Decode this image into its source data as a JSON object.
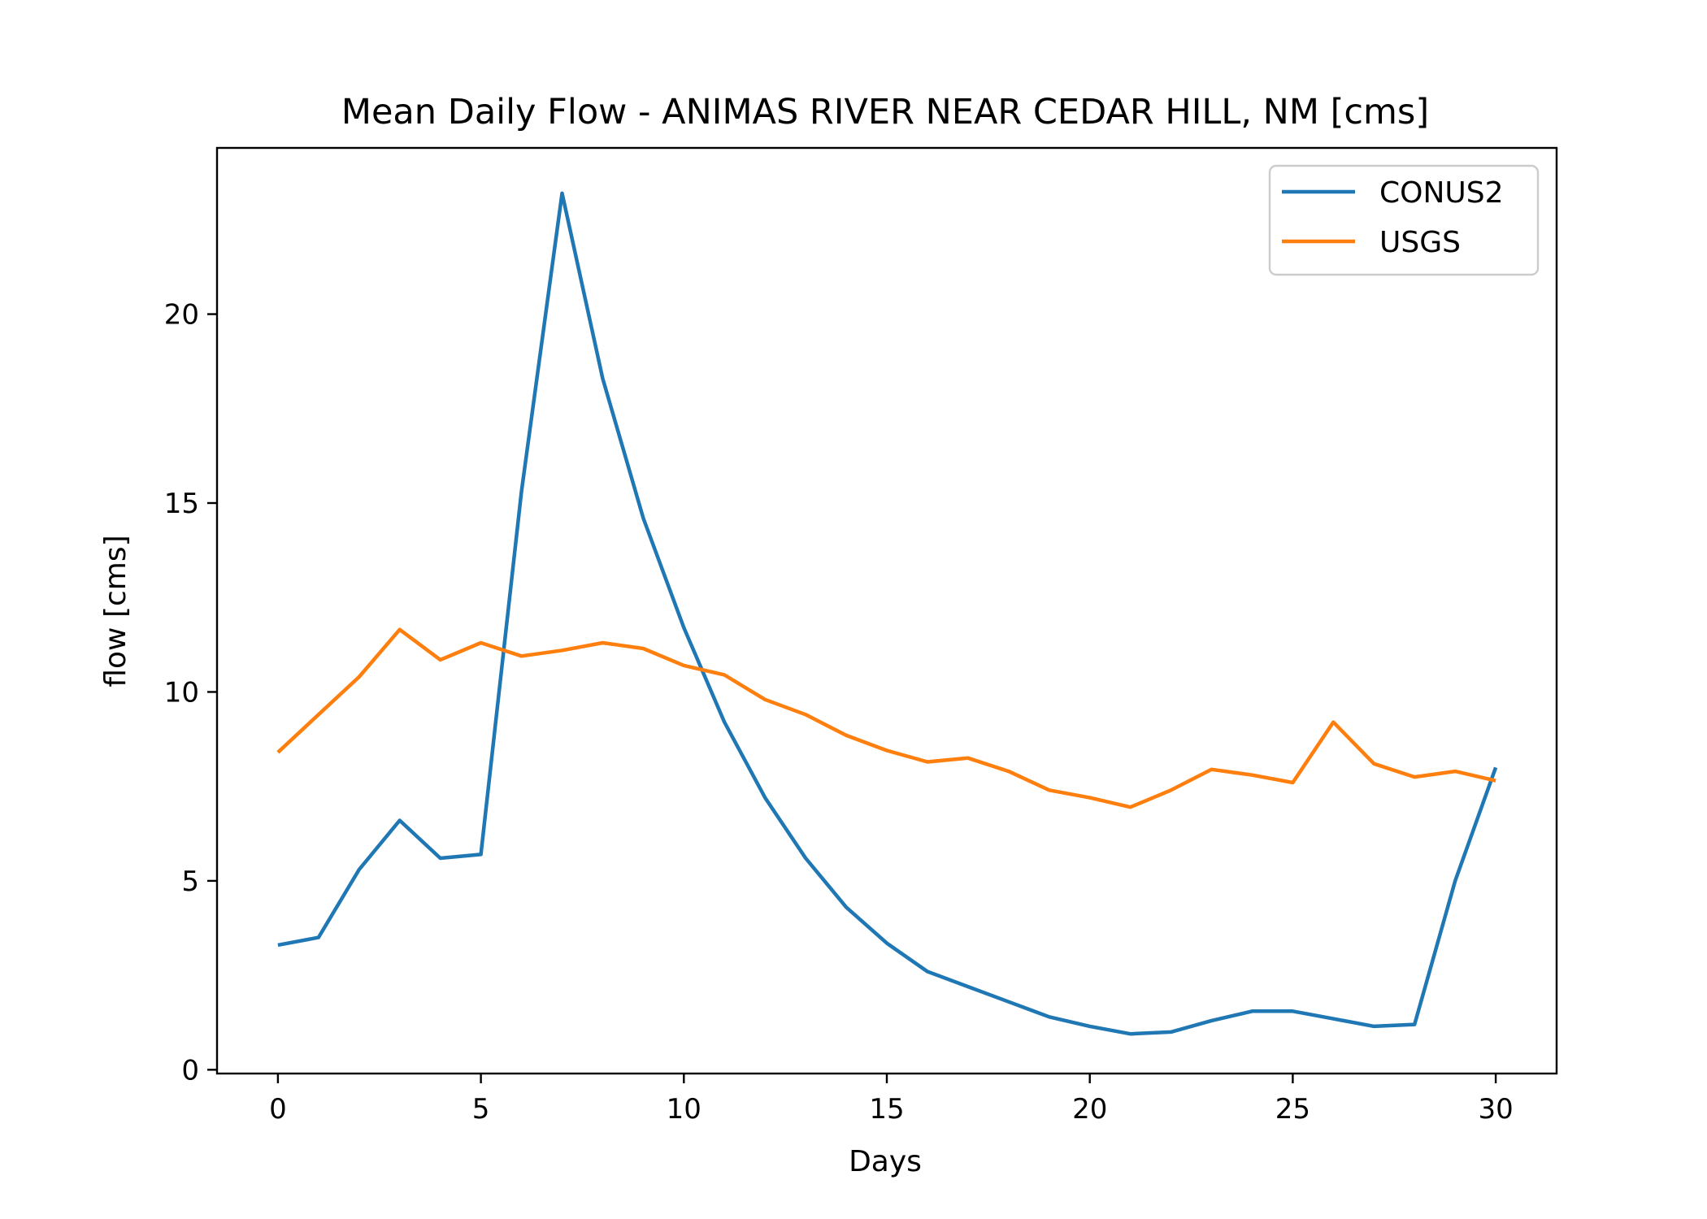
{
  "chart_data": {
    "type": "line",
    "title": "Mean Daily Flow - ANIMAS RIVER NEAR CEDAR HILL, NM [cms]",
    "xlabel": "Days",
    "ylabel": "flow [cms]",
    "xlim": [
      -1.5,
      31.5
    ],
    "ylim": [
      -0.1,
      24.4
    ],
    "xticks": [
      0,
      5,
      10,
      15,
      20,
      25,
      30
    ],
    "yticks": [
      0,
      5,
      10,
      15,
      20
    ],
    "grid": false,
    "legend_position": "top-right",
    "x": [
      0,
      1,
      2,
      3,
      4,
      5,
      6,
      7,
      8,
      9,
      10,
      11,
      12,
      13,
      14,
      15,
      16,
      17,
      18,
      19,
      20,
      21,
      22,
      23,
      24,
      25,
      26,
      27,
      28,
      29,
      30
    ],
    "series": [
      {
        "name": "CONUS2",
        "color": "#1f77b4",
        "values": [
          3.3,
          3.5,
          5.3,
          6.6,
          5.6,
          5.7,
          15.3,
          23.2,
          18.3,
          14.6,
          11.7,
          9.2,
          7.2,
          5.6,
          4.3,
          3.35,
          2.6,
          2.2,
          1.8,
          1.4,
          1.15,
          0.95,
          1.0,
          1.3,
          1.55,
          1.55,
          1.35,
          1.15,
          1.2,
          5.0,
          8.0
        ]
      },
      {
        "name": "USGS",
        "color": "#ff7f0e",
        "values": [
          8.4,
          9.4,
          10.4,
          11.65,
          10.85,
          11.3,
          10.95,
          11.1,
          11.3,
          11.15,
          10.7,
          10.45,
          9.8,
          9.4,
          8.85,
          8.45,
          8.15,
          8.25,
          7.9,
          7.4,
          7.2,
          6.95,
          7.4,
          7.95,
          7.8,
          7.6,
          9.2,
          8.1,
          7.75,
          7.9,
          7.65
        ]
      }
    ]
  }
}
